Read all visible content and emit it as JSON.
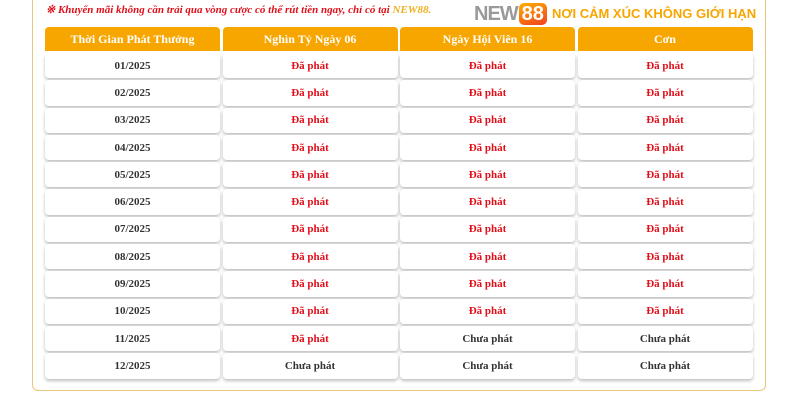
{
  "note": {
    "prefix": "※ Khuyến mãi không cần trải qua vòng cược có thể rút tiền ngay, chỉ có tại ",
    "brand": "NEW88."
  },
  "headers": [
    "Thời Gian Phát Thưởng",
    "Nghìn Tỷ Ngày 06",
    "Ngày Hội Viên 16",
    "Cơn"
  ],
  "rows": [
    [
      "01/2025",
      "Đã phát",
      "Đã phát",
      "Đã phát"
    ],
    [
      "02/2025",
      "Đã phát",
      "Đã phát",
      "Đã phát"
    ],
    [
      "03/2025",
      "Đã phát",
      "Đã phát",
      "Đã phát"
    ],
    [
      "04/2025",
      "Đã phát",
      "Đã phát",
      "Đã phát"
    ],
    [
      "05/2025",
      "Đã phát",
      "Đã phát",
      "Đã phát"
    ],
    [
      "06/2025",
      "Đã phát",
      "Đã phát",
      "Đã phát"
    ],
    [
      "07/2025",
      "Đã phát",
      "Đã phát",
      "Đã phát"
    ],
    [
      "08/2025",
      "Đã phát",
      "Đã phát",
      "Đã phát"
    ],
    [
      "09/2025",
      "Đã phát",
      "Đã phát",
      "Đã phát"
    ],
    [
      "10/2025",
      "Đã phát",
      "Đã phát",
      "Đã phát"
    ],
    [
      "11/2025",
      "Đã phát",
      "Chưa phát",
      "Chưa phát"
    ],
    [
      "12/2025",
      "Chưa phát",
      "Chưa phát",
      "Chưa phát"
    ]
  ],
  "logo": {
    "text": "NEW",
    "number": "88",
    "slogan": "NƠI CẢM XÚC KHÔNG GIỚI HẠN"
  },
  "colors": {
    "header": "#f7a600",
    "paid": "#e0101a",
    "unpaid": "#333333"
  }
}
